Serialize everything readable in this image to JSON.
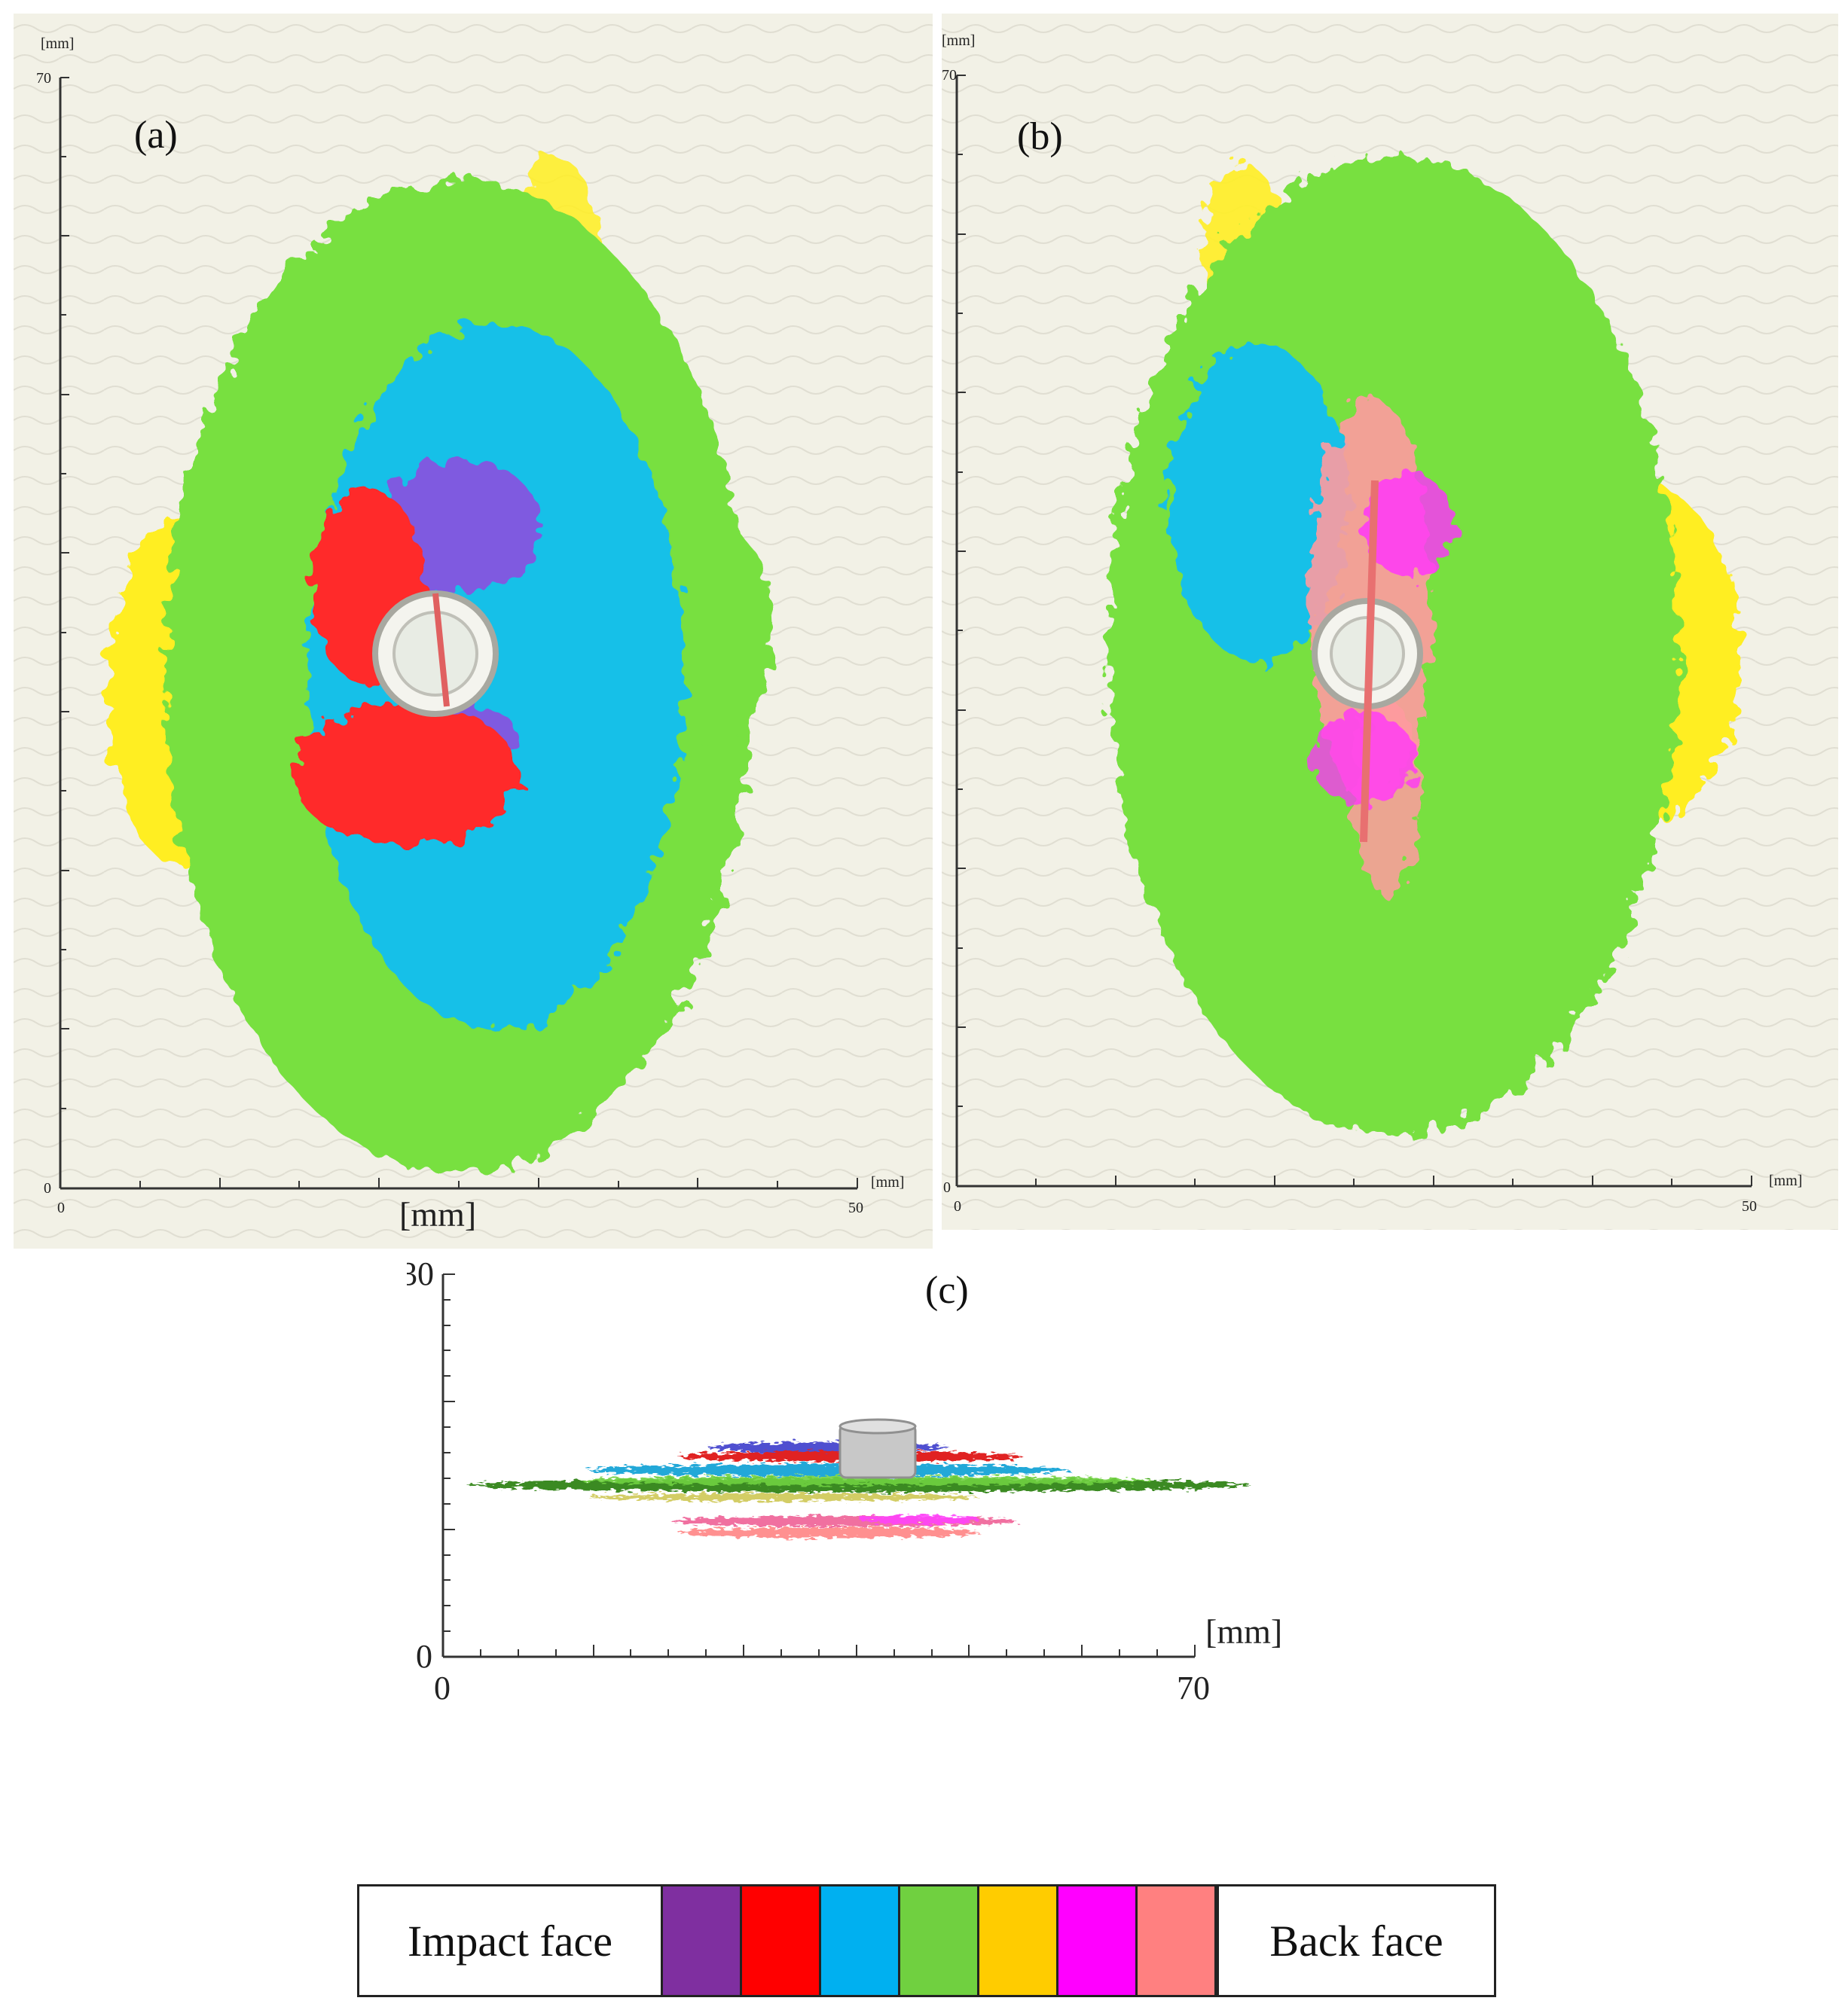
{
  "panels": {
    "a": {
      "label": "(a)",
      "unit_y": "[mm]",
      "unit_x": "[mm]",
      "unit_below": "[mm]",
      "x_ticks": [
        "0",
        "50"
      ],
      "y_ticks": [
        "0",
        "70"
      ]
    },
    "b": {
      "label": "(b)",
      "unit_y": "[mm]",
      "unit_x": "[mm]",
      "x_ticks": [
        "0",
        "50"
      ],
      "y_ticks": [
        "0",
        "70"
      ]
    },
    "c": {
      "label": "(c)",
      "unit_x": "[mm]",
      "x_ticks": [
        "0",
        "70"
      ],
      "y_ticks": [
        "0",
        "30"
      ]
    }
  },
  "legend": {
    "left_label": "Impact face",
    "right_label": "Back face",
    "swatches": [
      {
        "color": "#7f2fa0"
      },
      {
        "color": "#ff0000"
      },
      {
        "color": "#00b0f0"
      },
      {
        "color": "#70d040"
      },
      {
        "color": "#ffcc00"
      },
      {
        "color": "#ff00ff"
      },
      {
        "color": "#ff8080"
      }
    ]
  },
  "colors": {
    "purple": "#7f2fa0",
    "red": "#ff2a2a",
    "blue": "#18c0e8",
    "green": "#78e040",
    "yellow": "#ffee22",
    "magenta": "#ff30ff",
    "pink": "#ff9090",
    "background": "#f2f1e6"
  }
}
